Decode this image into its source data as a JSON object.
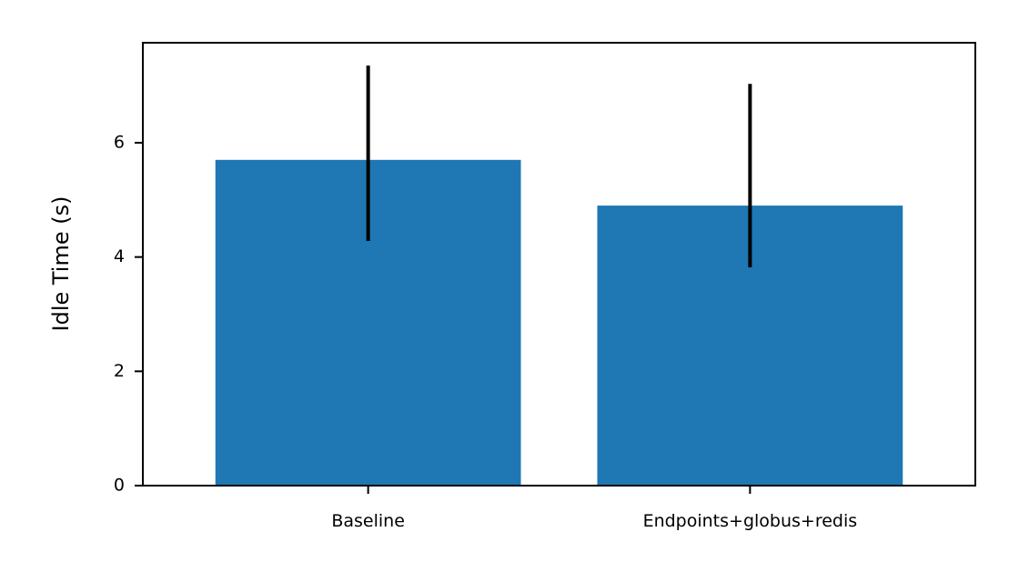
{
  "chart_data": {
    "type": "bar",
    "title": "",
    "xlabel": "",
    "ylabel": "Idle Time (s)",
    "categories": [
      "Baseline",
      "Endpoints+globus+redis"
    ],
    "values": [
      5.7,
      4.9
    ],
    "error_low": [
      4.28,
      3.82
    ],
    "error_high": [
      7.35,
      7.03
    ],
    "ylim": [
      0,
      7.75
    ],
    "yticks": [
      0,
      2,
      4,
      6
    ],
    "grid": false,
    "legend": "none",
    "bar_color": "#1f77b4",
    "error_color": "#000000"
  }
}
